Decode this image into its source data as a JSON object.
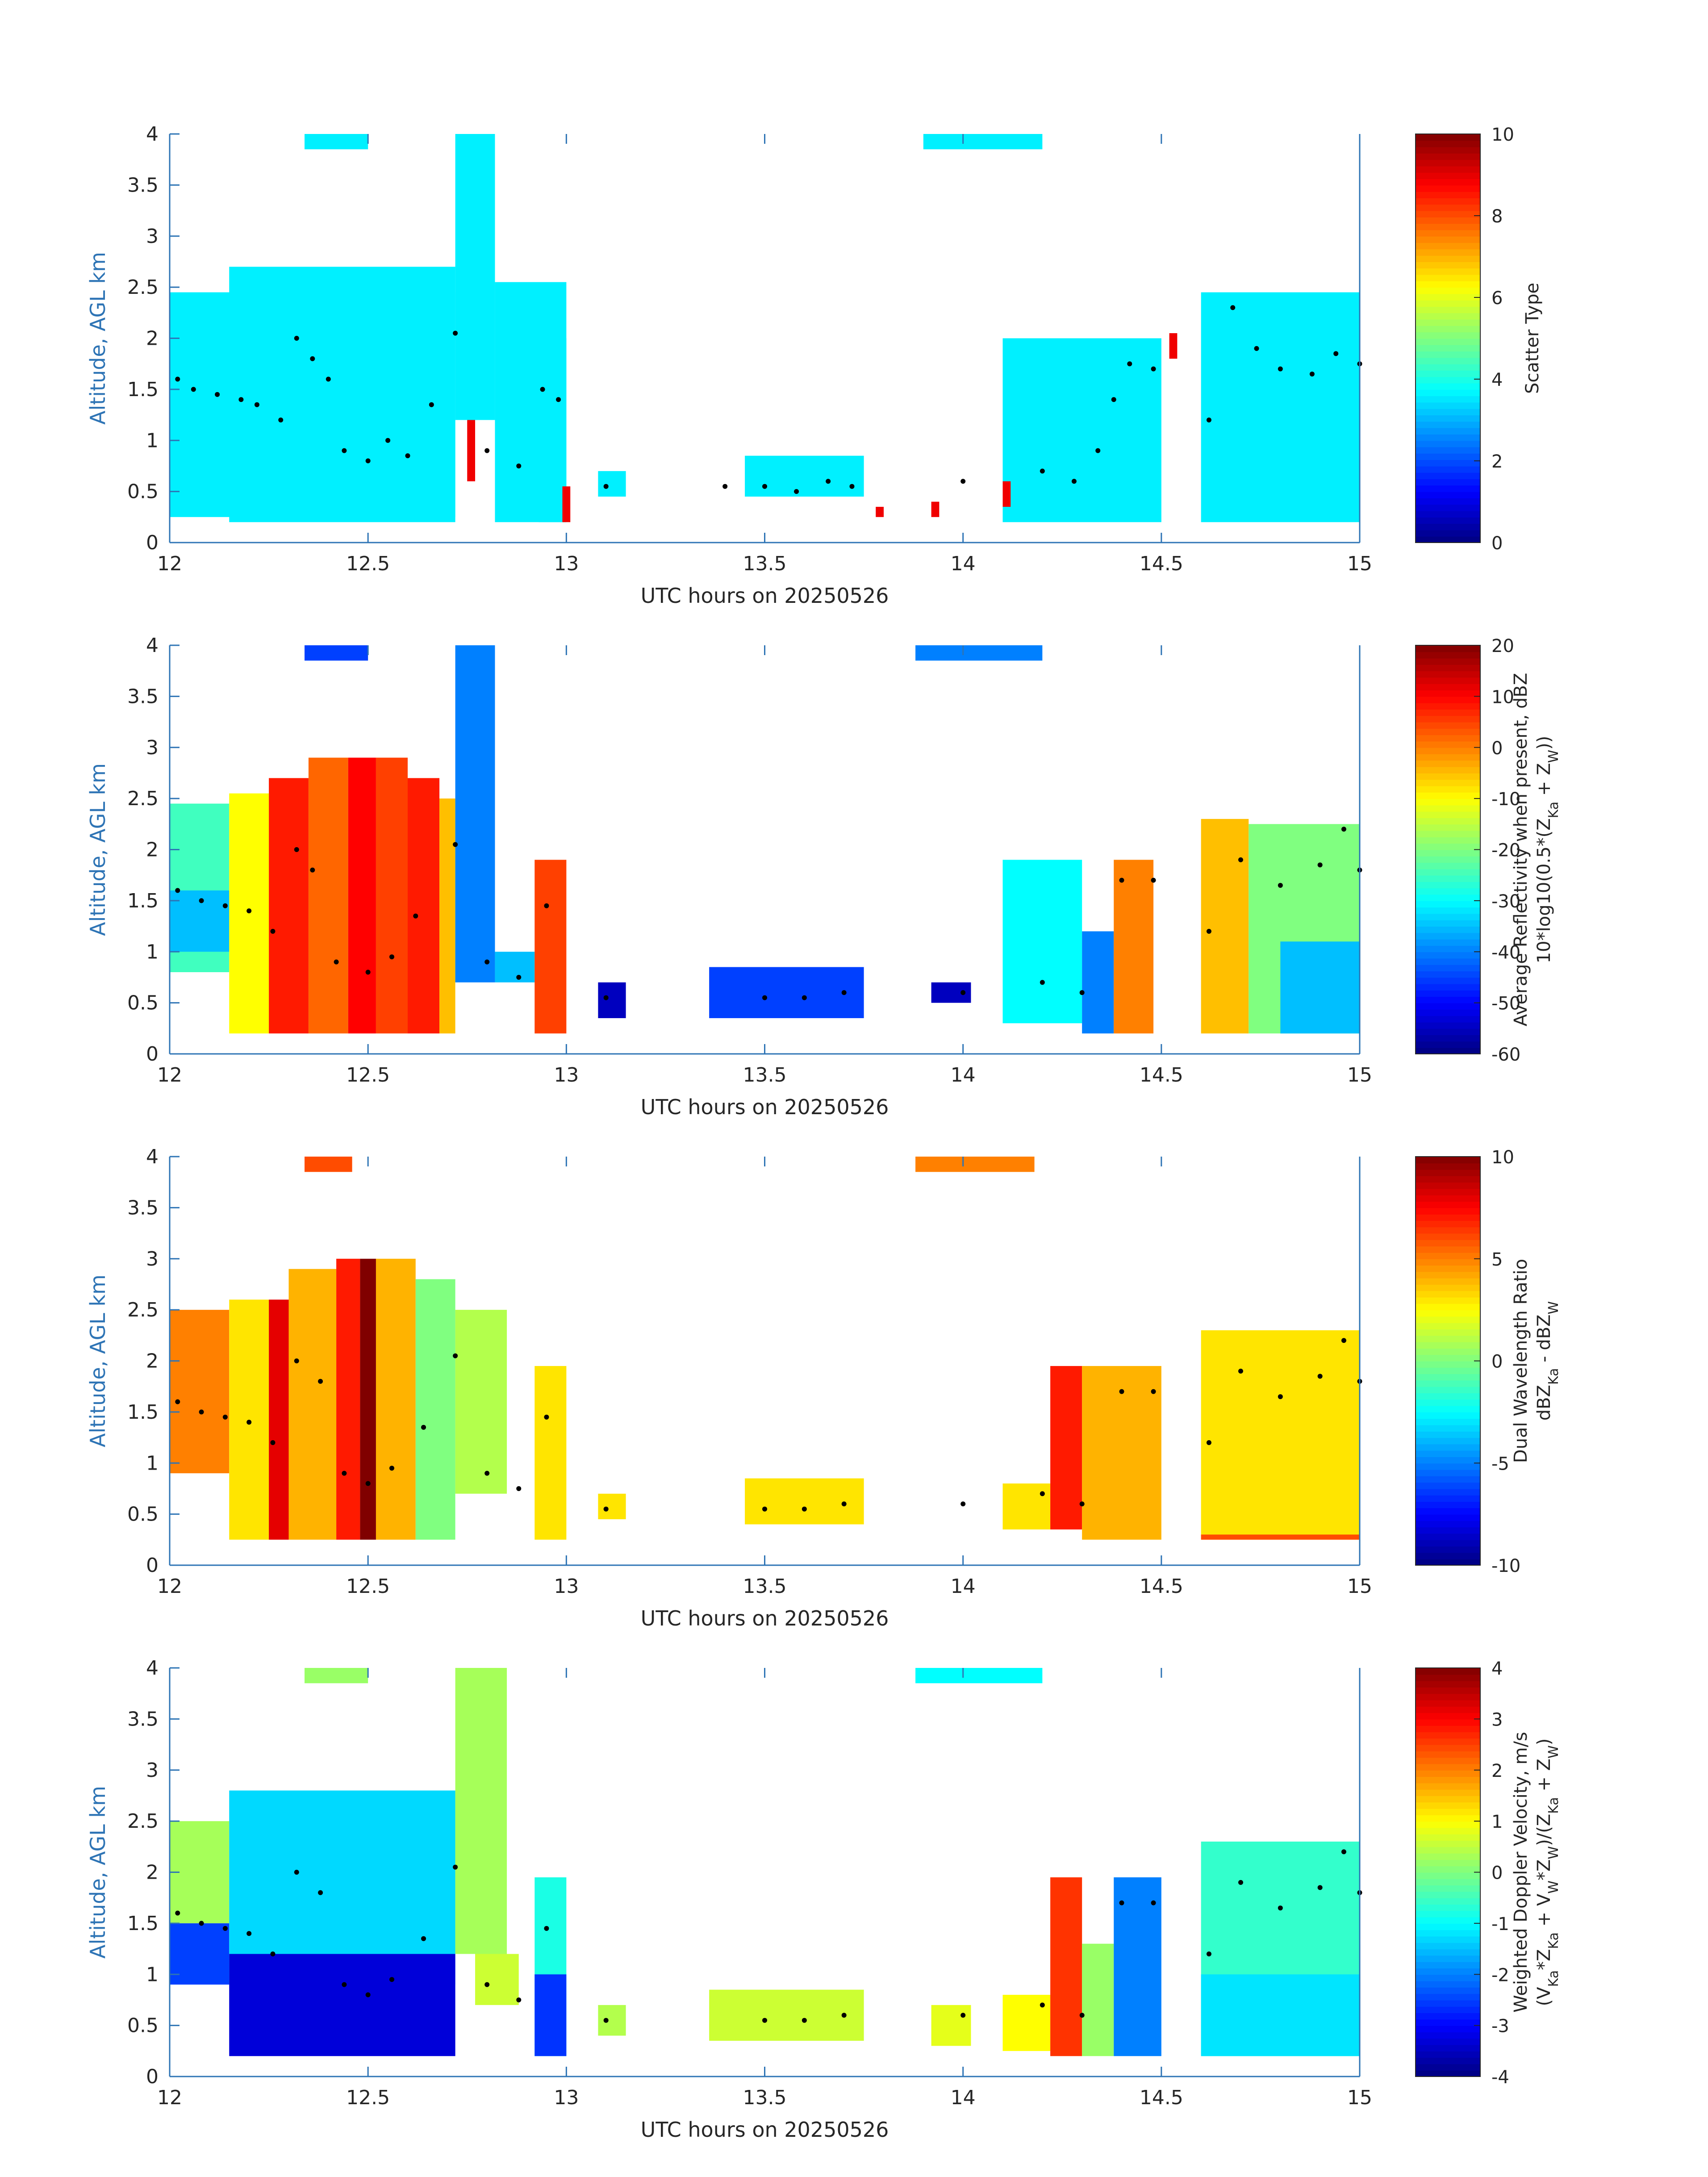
{
  "figure": {
    "colors": {
      "axis": "#2e74b5",
      "text": "#262626",
      "dots": "#000000",
      "background": "#ffffff",
      "colormap": "jet"
    }
  },
  "chart_data": [
    {
      "type": "heatmap",
      "title": "",
      "xlabel": "UTC hours on 20250526",
      "ylabel": "Altitude, AGL km",
      "xlim": [
        12,
        15
      ],
      "ylim": [
        0,
        4
      ],
      "xticks": [
        "12",
        "12.5",
        "13",
        "13.5",
        "14",
        "14.5",
        "15"
      ],
      "yticks": [
        "0",
        "0.5",
        "1",
        "1.5",
        "2",
        "2.5",
        "3",
        "3.5",
        "4"
      ],
      "colorbar": {
        "label_lines": [
          "Scatter Type"
        ],
        "range": [
          0,
          10
        ],
        "ticks": [
          "0",
          "2",
          "4",
          "6",
          "8",
          "10"
        ]
      },
      "cells": [
        [
          12.0,
          12.72,
          0.25,
          2.45,
          3.6
        ],
        [
          12.15,
          12.72,
          0.2,
          2.7,
          3.6
        ],
        [
          12.72,
          12.82,
          1.2,
          4.0,
          3.6
        ],
        [
          12.82,
          13.0,
          0.2,
          2.55,
          3.6
        ],
        [
          12.93,
          13.0,
          0.2,
          2.0,
          3.6
        ],
        [
          12.34,
          12.5,
          3.85,
          4.0,
          3.6
        ],
        [
          13.08,
          13.15,
          0.45,
          0.7,
          3.6
        ],
        [
          13.45,
          13.75,
          0.45,
          0.85,
          3.6
        ],
        [
          13.9,
          14.2,
          3.85,
          4.0,
          3.6
        ],
        [
          14.1,
          14.5,
          0.2,
          2.0,
          3.6
        ],
        [
          14.6,
          15.0,
          0.2,
          2.45,
          3.6
        ],
        [
          12.75,
          12.77,
          0.6,
          1.2,
          8.9
        ],
        [
          12.99,
          13.01,
          0.2,
          0.55,
          8.9
        ],
        [
          14.1,
          14.12,
          0.35,
          0.6,
          8.9
        ],
        [
          14.52,
          14.54,
          1.8,
          2.05,
          8.9
        ],
        [
          13.78,
          13.8,
          0.25,
          0.35,
          8.9
        ],
        [
          13.92,
          13.94,
          0.25,
          0.4,
          8.9
        ]
      ],
      "dots": [
        [
          12.02,
          1.6
        ],
        [
          12.06,
          1.5
        ],
        [
          12.12,
          1.45
        ],
        [
          12.18,
          1.4
        ],
        [
          12.22,
          1.35
        ],
        [
          12.28,
          1.2
        ],
        [
          12.32,
          2.0
        ],
        [
          12.36,
          1.8
        ],
        [
          12.4,
          1.6
        ],
        [
          12.44,
          0.9
        ],
        [
          12.5,
          0.8
        ],
        [
          12.55,
          1.0
        ],
        [
          12.6,
          0.85
        ],
        [
          12.66,
          1.35
        ],
        [
          12.72,
          2.05
        ],
        [
          12.8,
          0.9
        ],
        [
          12.88,
          0.75
        ],
        [
          12.94,
          1.5
        ],
        [
          12.98,
          1.4
        ],
        [
          13.1,
          0.55
        ],
        [
          13.4,
          0.55
        ],
        [
          13.5,
          0.55
        ],
        [
          13.58,
          0.5
        ],
        [
          13.66,
          0.6
        ],
        [
          13.72,
          0.55
        ],
        [
          14.0,
          0.6
        ],
        [
          14.2,
          0.7
        ],
        [
          14.28,
          0.6
        ],
        [
          14.34,
          0.9
        ],
        [
          14.38,
          1.4
        ],
        [
          14.42,
          1.75
        ],
        [
          14.48,
          1.7
        ],
        [
          14.62,
          1.2
        ],
        [
          14.68,
          2.3
        ],
        [
          14.74,
          1.9
        ],
        [
          14.8,
          1.7
        ],
        [
          14.88,
          1.65
        ],
        [
          14.94,
          1.85
        ],
        [
          15.0,
          1.75
        ]
      ]
    },
    {
      "type": "heatmap",
      "title": "",
      "xlabel": "UTC hours on 20250526",
      "ylabel": "Altitude, AGL km",
      "xlim": [
        12,
        15
      ],
      "ylim": [
        0,
        4
      ],
      "xticks": [
        "12",
        "12.5",
        "13",
        "13.5",
        "14",
        "14.5",
        "15"
      ],
      "yticks": [
        "0",
        "0.5",
        "1",
        "1.5",
        "2",
        "2.5",
        "3",
        "3.5",
        "4"
      ],
      "colorbar": {
        "label_lines": [
          "Average Reflectivity when present, dBZ",
          "10*log10(0.5*(Z_Ka + Z_W))"
        ],
        "range": [
          -60,
          20
        ],
        "ticks": [
          "-60",
          "-50",
          "-40",
          "-30",
          "-20",
          "-10",
          "0",
          "10",
          "20"
        ]
      },
      "cells": [
        [
          12.0,
          12.15,
          0.8,
          2.45,
          -25
        ],
        [
          12.0,
          12.15,
          1.0,
          1.6,
          -35
        ],
        [
          12.15,
          12.25,
          0.2,
          2.55,
          -10
        ],
        [
          12.25,
          12.35,
          0.2,
          2.7,
          8
        ],
        [
          12.35,
          12.45,
          0.2,
          2.9,
          2
        ],
        [
          12.45,
          12.52,
          0.2,
          2.9,
          10
        ],
        [
          12.52,
          12.6,
          0.2,
          2.9,
          5
        ],
        [
          12.6,
          12.68,
          0.2,
          2.7,
          8
        ],
        [
          12.68,
          12.72,
          0.2,
          2.5,
          -5
        ],
        [
          12.72,
          12.82,
          0.7,
          4.0,
          -40
        ],
        [
          12.82,
          12.92,
          0.7,
          1.0,
          -35
        ],
        [
          12.92,
          13.0,
          0.2,
          1.9,
          5
        ],
        [
          12.34,
          12.5,
          3.85,
          4.0,
          -45
        ],
        [
          13.08,
          13.15,
          0.35,
          0.7,
          -55
        ],
        [
          13.36,
          13.75,
          0.35,
          0.85,
          -45
        ],
        [
          13.88,
          14.2,
          3.85,
          4.0,
          -40
        ],
        [
          13.92,
          14.02,
          0.5,
          0.7,
          -55
        ],
        [
          14.1,
          14.3,
          0.3,
          1.9,
          -30
        ],
        [
          14.3,
          14.38,
          0.2,
          1.2,
          -40
        ],
        [
          14.38,
          14.48,
          0.2,
          1.9,
          0
        ],
        [
          14.6,
          14.72,
          0.2,
          2.3,
          -5
        ],
        [
          14.72,
          15.0,
          0.2,
          2.25,
          -20
        ],
        [
          14.8,
          15.0,
          0.2,
          1.1,
          -35
        ]
      ],
      "dots": [
        [
          12.02,
          1.6
        ],
        [
          12.08,
          1.5
        ],
        [
          12.14,
          1.45
        ],
        [
          12.2,
          1.4
        ],
        [
          12.26,
          1.2
        ],
        [
          12.32,
          2.0
        ],
        [
          12.36,
          1.8
        ],
        [
          12.42,
          0.9
        ],
        [
          12.5,
          0.8
        ],
        [
          12.56,
          0.95
        ],
        [
          12.62,
          1.35
        ],
        [
          12.72,
          2.05
        ],
        [
          12.8,
          0.9
        ],
        [
          12.88,
          0.75
        ],
        [
          12.95,
          1.45
        ],
        [
          13.1,
          0.55
        ],
        [
          13.5,
          0.55
        ],
        [
          13.6,
          0.55
        ],
        [
          13.7,
          0.6
        ],
        [
          14.0,
          0.6
        ],
        [
          14.2,
          0.7
        ],
        [
          14.3,
          0.6
        ],
        [
          14.4,
          1.7
        ],
        [
          14.48,
          1.7
        ],
        [
          14.62,
          1.2
        ],
        [
          14.7,
          1.9
        ],
        [
          14.8,
          1.65
        ],
        [
          14.9,
          1.85
        ],
        [
          14.96,
          2.2
        ],
        [
          15.0,
          1.8
        ]
      ]
    },
    {
      "type": "heatmap",
      "title": "",
      "xlabel": "UTC hours on 20250526",
      "ylabel": "Altitude, AGL km",
      "xlim": [
        12,
        15
      ],
      "ylim": [
        0,
        4
      ],
      "xticks": [
        "12",
        "12.5",
        "13",
        "13.5",
        "14",
        "14.5",
        "15"
      ],
      "yticks": [
        "0",
        "0.5",
        "1",
        "1.5",
        "2",
        "2.5",
        "3",
        "3.5",
        "4"
      ],
      "colorbar": {
        "label_lines": [
          "Dual Wavelength Ratio",
          "dBZ_Ka - dBZ_W"
        ],
        "range": [
          -10,
          10
        ],
        "ticks": [
          "-10",
          "-5",
          "0",
          "5",
          "10"
        ]
      },
      "cells": [
        [
          12.0,
          12.15,
          0.9,
          2.5,
          5
        ],
        [
          12.15,
          12.25,
          0.25,
          2.6,
          3
        ],
        [
          12.25,
          12.3,
          0.25,
          2.6,
          8
        ],
        [
          12.3,
          12.42,
          0.25,
          2.9,
          4
        ],
        [
          12.42,
          12.48,
          0.25,
          3.0,
          7
        ],
        [
          12.48,
          12.52,
          0.25,
          3.0,
          10
        ],
        [
          12.52,
          12.62,
          0.25,
          3.0,
          4
        ],
        [
          12.62,
          12.72,
          0.25,
          2.8,
          0
        ],
        [
          12.72,
          12.85,
          0.7,
          2.5,
          1
        ],
        [
          12.92,
          13.0,
          0.25,
          1.95,
          3
        ],
        [
          12.34,
          12.46,
          3.85,
          4.0,
          6
        ],
        [
          13.08,
          13.15,
          0.45,
          0.7,
          3
        ],
        [
          13.45,
          13.75,
          0.4,
          0.85,
          3
        ],
        [
          13.88,
          14.18,
          3.85,
          4.0,
          5
        ],
        [
          14.1,
          14.22,
          0.35,
          0.8,
          3
        ],
        [
          14.22,
          14.3,
          0.35,
          1.95,
          7
        ],
        [
          14.3,
          14.5,
          0.25,
          1.95,
          4
        ],
        [
          14.6,
          15.0,
          0.25,
          2.3,
          3
        ],
        [
          14.6,
          15.0,
          0.25,
          0.3,
          6
        ]
      ],
      "dots": [
        [
          12.02,
          1.6
        ],
        [
          12.08,
          1.5
        ],
        [
          12.14,
          1.45
        ],
        [
          12.2,
          1.4
        ],
        [
          12.26,
          1.2
        ],
        [
          12.32,
          2.0
        ],
        [
          12.38,
          1.8
        ],
        [
          12.44,
          0.9
        ],
        [
          12.5,
          0.8
        ],
        [
          12.56,
          0.95
        ],
        [
          12.64,
          1.35
        ],
        [
          12.72,
          2.05
        ],
        [
          12.8,
          0.9
        ],
        [
          12.88,
          0.75
        ],
        [
          12.95,
          1.45
        ],
        [
          13.1,
          0.55
        ],
        [
          13.5,
          0.55
        ],
        [
          13.6,
          0.55
        ],
        [
          13.7,
          0.6
        ],
        [
          14.0,
          0.6
        ],
        [
          14.2,
          0.7
        ],
        [
          14.3,
          0.6
        ],
        [
          14.4,
          1.7
        ],
        [
          14.48,
          1.7
        ],
        [
          14.62,
          1.2
        ],
        [
          14.7,
          1.9
        ],
        [
          14.8,
          1.65
        ],
        [
          14.9,
          1.85
        ],
        [
          14.96,
          2.2
        ],
        [
          15.0,
          1.8
        ]
      ]
    },
    {
      "type": "heatmap",
      "title": "",
      "xlabel": "UTC hours on 20250526",
      "ylabel": "Altitude, AGL km",
      "xlim": [
        12,
        15
      ],
      "ylim": [
        0,
        4
      ],
      "xticks": [
        "12",
        "12.5",
        "13",
        "13.5",
        "14",
        "14.5",
        "15"
      ],
      "yticks": [
        "0",
        "0.5",
        "1",
        "1.5",
        "2",
        "2.5",
        "3",
        "3.5",
        "4"
      ],
      "colorbar": {
        "label_lines": [
          "Weighted Doppler Velocity, m/s",
          "(V_Ka*Z_Ka + V_W*Z_W)/(Z_Ka + Z_W)"
        ],
        "range": [
          -4,
          4
        ],
        "ticks": [
          "-4",
          "-3",
          "-2",
          "-1",
          "0",
          "1",
          "2",
          "3",
          "4"
        ]
      },
      "cells": [
        [
          12.0,
          12.15,
          1.5,
          2.5,
          0.3
        ],
        [
          12.0,
          12.15,
          0.9,
          1.5,
          -2.5
        ],
        [
          12.15,
          12.72,
          0.9,
          2.8,
          -1.3
        ],
        [
          12.15,
          12.72,
          0.2,
          1.2,
          -3.3
        ],
        [
          12.72,
          12.85,
          1.2,
          4.0,
          0.3
        ],
        [
          12.77,
          12.88,
          0.7,
          1.2,
          0.6
        ],
        [
          12.92,
          13.0,
          0.2,
          1.95,
          -0.8
        ],
        [
          12.92,
          13.0,
          0.2,
          1.0,
          -2.6
        ],
        [
          12.34,
          12.5,
          3.85,
          4.0,
          0.2
        ],
        [
          13.08,
          13.15,
          0.4,
          0.7,
          0.4
        ],
        [
          13.36,
          13.75,
          0.35,
          0.85,
          0.6
        ],
        [
          13.88,
          14.2,
          3.85,
          4.0,
          -1.0
        ],
        [
          13.92,
          14.02,
          0.3,
          0.7,
          0.8
        ],
        [
          14.1,
          14.22,
          0.25,
          0.8,
          1.0
        ],
        [
          14.22,
          14.3,
          0.2,
          1.95,
          2.6
        ],
        [
          14.3,
          14.38,
          0.2,
          1.3,
          0.2
        ],
        [
          14.38,
          14.5,
          0.2,
          1.95,
          -2.0
        ],
        [
          14.6,
          15.0,
          0.2,
          2.3,
          -0.6
        ],
        [
          14.6,
          15.0,
          0.2,
          1.0,
          -1.2
        ]
      ],
      "dots": [
        [
          12.02,
          1.6
        ],
        [
          12.08,
          1.5
        ],
        [
          12.14,
          1.45
        ],
        [
          12.2,
          1.4
        ],
        [
          12.26,
          1.2
        ],
        [
          12.32,
          2.0
        ],
        [
          12.38,
          1.8
        ],
        [
          12.44,
          0.9
        ],
        [
          12.5,
          0.8
        ],
        [
          12.56,
          0.95
        ],
        [
          12.64,
          1.35
        ],
        [
          12.72,
          2.05
        ],
        [
          12.8,
          0.9
        ],
        [
          12.88,
          0.75
        ],
        [
          12.95,
          1.45
        ],
        [
          13.1,
          0.55
        ],
        [
          13.5,
          0.55
        ],
        [
          13.6,
          0.55
        ],
        [
          13.7,
          0.6
        ],
        [
          14.0,
          0.6
        ],
        [
          14.2,
          0.7
        ],
        [
          14.3,
          0.6
        ],
        [
          14.4,
          1.7
        ],
        [
          14.48,
          1.7
        ],
        [
          14.62,
          1.2
        ],
        [
          14.7,
          1.9
        ],
        [
          14.8,
          1.65
        ],
        [
          14.9,
          1.85
        ],
        [
          14.96,
          2.2
        ],
        [
          15.0,
          1.8
        ]
      ]
    }
  ]
}
